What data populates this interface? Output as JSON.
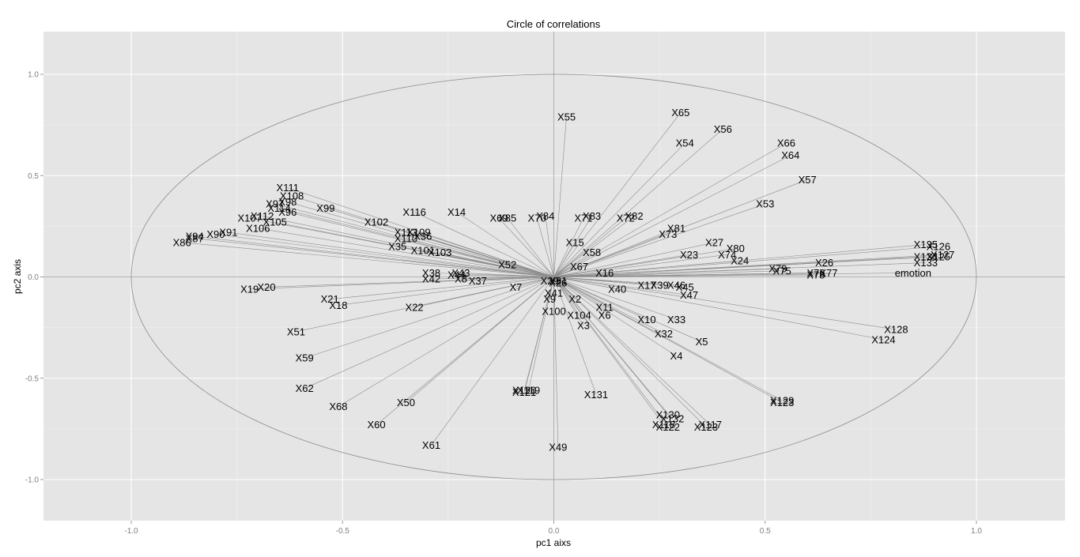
{
  "chart_data": {
    "type": "scatter",
    "title": "Circle of correlations",
    "xlabel": "pc1 aixs",
    "ylabel": "pc2 axis",
    "xlim": [
      -1.2,
      1.2
    ],
    "ylim": [
      -1.2,
      1.2
    ],
    "xticks": [
      "-1.0",
      "-0.5",
      "0.0",
      "0.5",
      "1.0"
    ],
    "yticks": [
      "1.0",
      "0.5",
      "0.0",
      "-0.5",
      "-1.0"
    ],
    "grid": true,
    "unit_circle": true,
    "reference_lines": [
      0,
      0
    ],
    "points": [
      {
        "name": "X55",
        "x": 0.03,
        "y": 0.79
      },
      {
        "name": "X65",
        "x": 0.3,
        "y": 0.81
      },
      {
        "name": "X56",
        "x": 0.4,
        "y": 0.73
      },
      {
        "name": "X54",
        "x": 0.31,
        "y": 0.66
      },
      {
        "name": "X66",
        "x": 0.55,
        "y": 0.66
      },
      {
        "name": "X64",
        "x": 0.56,
        "y": 0.6
      },
      {
        "name": "X57",
        "x": 0.6,
        "y": 0.48
      },
      {
        "name": "X53",
        "x": 0.5,
        "y": 0.36
      },
      {
        "name": "X111",
        "x": -0.63,
        "y": 0.44
      },
      {
        "name": "X108",
        "x": -0.62,
        "y": 0.4
      },
      {
        "name": "X98",
        "x": -0.63,
        "y": 0.37
      },
      {
        "name": "X97",
        "x": -0.66,
        "y": 0.36
      },
      {
        "name": "X114",
        "x": -0.65,
        "y": 0.34
      },
      {
        "name": "X96",
        "x": -0.63,
        "y": 0.32
      },
      {
        "name": "X99",
        "x": -0.54,
        "y": 0.34
      },
      {
        "name": "X112",
        "x": -0.69,
        "y": 0.3
      },
      {
        "name": "X107",
        "x": -0.72,
        "y": 0.29
      },
      {
        "name": "X105",
        "x": -0.66,
        "y": 0.27
      },
      {
        "name": "X106",
        "x": -0.7,
        "y": 0.24
      },
      {
        "name": "X116",
        "x": -0.33,
        "y": 0.32
      },
      {
        "name": "X14",
        "x": -0.23,
        "y": 0.32
      },
      {
        "name": "X102",
        "x": -0.42,
        "y": 0.27
      },
      {
        "name": "X69",
        "x": -0.13,
        "y": 0.29
      },
      {
        "name": "X85",
        "x": -0.11,
        "y": 0.29
      },
      {
        "name": "X70",
        "x": -0.04,
        "y": 0.29
      },
      {
        "name": "X84",
        "x": -0.02,
        "y": 0.3
      },
      {
        "name": "X71",
        "x": 0.07,
        "y": 0.29
      },
      {
        "name": "X83",
        "x": 0.09,
        "y": 0.3
      },
      {
        "name": "X72",
        "x": 0.17,
        "y": 0.29
      },
      {
        "name": "X82",
        "x": 0.19,
        "y": 0.3
      },
      {
        "name": "X81",
        "x": 0.29,
        "y": 0.24
      },
      {
        "name": "X73",
        "x": 0.27,
        "y": 0.21
      },
      {
        "name": "X94",
        "x": -0.85,
        "y": 0.2
      },
      {
        "name": "X87",
        "x": -0.85,
        "y": 0.19
      },
      {
        "name": "X86",
        "x": -0.88,
        "y": 0.17
      },
      {
        "name": "X91",
        "x": -0.77,
        "y": 0.22
      },
      {
        "name": "X90",
        "x": -0.8,
        "y": 0.21
      },
      {
        "name": "X113",
        "x": -0.35,
        "y": 0.22
      },
      {
        "name": "X109",
        "x": -0.32,
        "y": 0.22
      },
      {
        "name": "X110",
        "x": -0.35,
        "y": 0.19
      },
      {
        "name": "X36",
        "x": -0.31,
        "y": 0.2
      },
      {
        "name": "X35",
        "x": -0.37,
        "y": 0.15
      },
      {
        "name": "X101",
        "x": -0.31,
        "y": 0.13
      },
      {
        "name": "X103",
        "x": -0.27,
        "y": 0.12
      },
      {
        "name": "X15",
        "x": 0.05,
        "y": 0.17
      },
      {
        "name": "X58",
        "x": 0.09,
        "y": 0.12
      },
      {
        "name": "X27",
        "x": 0.38,
        "y": 0.17
      },
      {
        "name": "X80",
        "x": 0.43,
        "y": 0.14
      },
      {
        "name": "X23",
        "x": 0.32,
        "y": 0.11
      },
      {
        "name": "X74",
        "x": 0.41,
        "y": 0.11
      },
      {
        "name": "X24",
        "x": 0.44,
        "y": 0.08
      },
      {
        "name": "X135",
        "x": 0.88,
        "y": 0.16
      },
      {
        "name": "X126",
        "x": 0.91,
        "y": 0.15
      },
      {
        "name": "X127",
        "x": 0.92,
        "y": 0.11
      },
      {
        "name": "X134",
        "x": 0.88,
        "y": 0.1
      },
      {
        "name": "X125",
        "x": 0.91,
        "y": 0.1
      },
      {
        "name": "X133",
        "x": 0.88,
        "y": 0.07
      },
      {
        "name": "X26",
        "x": 0.64,
        "y": 0.07
      },
      {
        "name": "X79",
        "x": 0.53,
        "y": 0.04
      },
      {
        "name": "X75",
        "x": 0.54,
        "y": 0.03
      },
      {
        "name": "X76",
        "x": 0.62,
        "y": 0.02
      },
      {
        "name": "X78",
        "x": 0.62,
        "y": 0.01
      },
      {
        "name": "X77",
        "x": 0.65,
        "y": 0.02
      },
      {
        "name": "emotion",
        "x": 0.85,
        "y": 0.02
      },
      {
        "name": "X52",
        "x": -0.11,
        "y": 0.06
      },
      {
        "name": "X67",
        "x": 0.06,
        "y": 0.05
      },
      {
        "name": "X16",
        "x": 0.12,
        "y": 0.02
      },
      {
        "name": "X38",
        "x": -0.29,
        "y": 0.02
      },
      {
        "name": "X43",
        "x": -0.22,
        "y": 0.02
      },
      {
        "name": "X44",
        "x": -0.23,
        "y": 0.01
      },
      {
        "name": "X42",
        "x": -0.29,
        "y": -0.01
      },
      {
        "name": "X8",
        "x": -0.22,
        "y": -0.01
      },
      {
        "name": "X37",
        "x": -0.18,
        "y": -0.02
      },
      {
        "name": "X7",
        "x": -0.09,
        "y": -0.05
      },
      {
        "name": "X29",
        "x": -0.01,
        "y": -0.02
      },
      {
        "name": "X26b",
        "x": 0.01,
        "y": -0.03
      },
      {
        "name": "X31",
        "x": 0.01,
        "y": -0.02
      },
      {
        "name": "X41",
        "x": 0.0,
        "y": -0.08
      },
      {
        "name": "X40",
        "x": 0.15,
        "y": -0.06
      },
      {
        "name": "X17",
        "x": 0.22,
        "y": -0.04
      },
      {
        "name": "X39",
        "x": 0.25,
        "y": -0.04
      },
      {
        "name": "X46",
        "x": 0.29,
        "y": -0.04
      },
      {
        "name": "X45",
        "x": 0.31,
        "y": -0.05
      },
      {
        "name": "X47",
        "x": 0.32,
        "y": -0.09
      },
      {
        "name": "X19",
        "x": -0.72,
        "y": -0.06
      },
      {
        "name": "X20",
        "x": -0.68,
        "y": -0.05
      },
      {
        "name": "X21",
        "x": -0.53,
        "y": -0.11
      },
      {
        "name": "X18",
        "x": -0.51,
        "y": -0.14
      },
      {
        "name": "X22",
        "x": -0.33,
        "y": -0.15
      },
      {
        "name": "X9",
        "x": -0.01,
        "y": -0.11
      },
      {
        "name": "X2",
        "x": 0.05,
        "y": -0.11
      },
      {
        "name": "X11",
        "x": 0.12,
        "y": -0.15
      },
      {
        "name": "X100",
        "x": 0.0,
        "y": -0.17
      },
      {
        "name": "X104",
        "x": 0.06,
        "y": -0.19
      },
      {
        "name": "X6",
        "x": 0.12,
        "y": -0.19
      },
      {
        "name": "X3",
        "x": 0.07,
        "y": -0.24
      },
      {
        "name": "X10",
        "x": 0.22,
        "y": -0.21
      },
      {
        "name": "X33",
        "x": 0.29,
        "y": -0.21
      },
      {
        "name": "X32",
        "x": 0.26,
        "y": -0.28
      },
      {
        "name": "X5",
        "x": 0.35,
        "y": -0.32
      },
      {
        "name": "X4",
        "x": 0.29,
        "y": -0.39
      },
      {
        "name": "X128",
        "x": 0.81,
        "y": -0.26
      },
      {
        "name": "X124",
        "x": 0.78,
        "y": -0.31
      },
      {
        "name": "X51",
        "x": -0.61,
        "y": -0.27
      },
      {
        "name": "X59",
        "x": -0.59,
        "y": -0.4
      },
      {
        "name": "X62",
        "x": -0.59,
        "y": -0.55
      },
      {
        "name": "X68",
        "x": -0.51,
        "y": -0.64
      },
      {
        "name": "X50",
        "x": -0.35,
        "y": -0.62
      },
      {
        "name": "X60",
        "x": -0.42,
        "y": -0.73
      },
      {
        "name": "X61",
        "x": -0.29,
        "y": -0.83
      },
      {
        "name": "X49",
        "x": 0.01,
        "y": -0.84
      },
      {
        "name": "X120",
        "x": -0.07,
        "y": -0.56
      },
      {
        "name": "X119",
        "x": -0.06,
        "y": -0.56
      },
      {
        "name": "X121",
        "x": -0.07,
        "y": -0.57
      },
      {
        "name": "X131",
        "x": 0.1,
        "y": -0.58
      },
      {
        "name": "X130",
        "x": 0.27,
        "y": -0.68
      },
      {
        "name": "X132",
        "x": 0.28,
        "y": -0.7
      },
      {
        "name": "X118",
        "x": 0.26,
        "y": -0.73
      },
      {
        "name": "X122",
        "x": 0.27,
        "y": -0.74
      },
      {
        "name": "X117",
        "x": 0.37,
        "y": -0.73
      },
      {
        "name": "X123",
        "x": 0.36,
        "y": -0.74
      },
      {
        "name": "X129",
        "x": 0.54,
        "y": -0.61
      },
      {
        "name": "X123b",
        "x": 0.54,
        "y": -0.62
      }
    ],
    "labels": {
      "X26b": "X26",
      "X123b": "X123"
    }
  },
  "style": {
    "panel_bg": "#e5e5e5",
    "grid_major": "#ffffff",
    "grid_minor": "#f2f2f2",
    "segment_color": "#8c8c8c",
    "circle_color": "#8c8c8c",
    "ref_line_color": "#9a9a9a",
    "tick_color": "#7f7f7f"
  }
}
